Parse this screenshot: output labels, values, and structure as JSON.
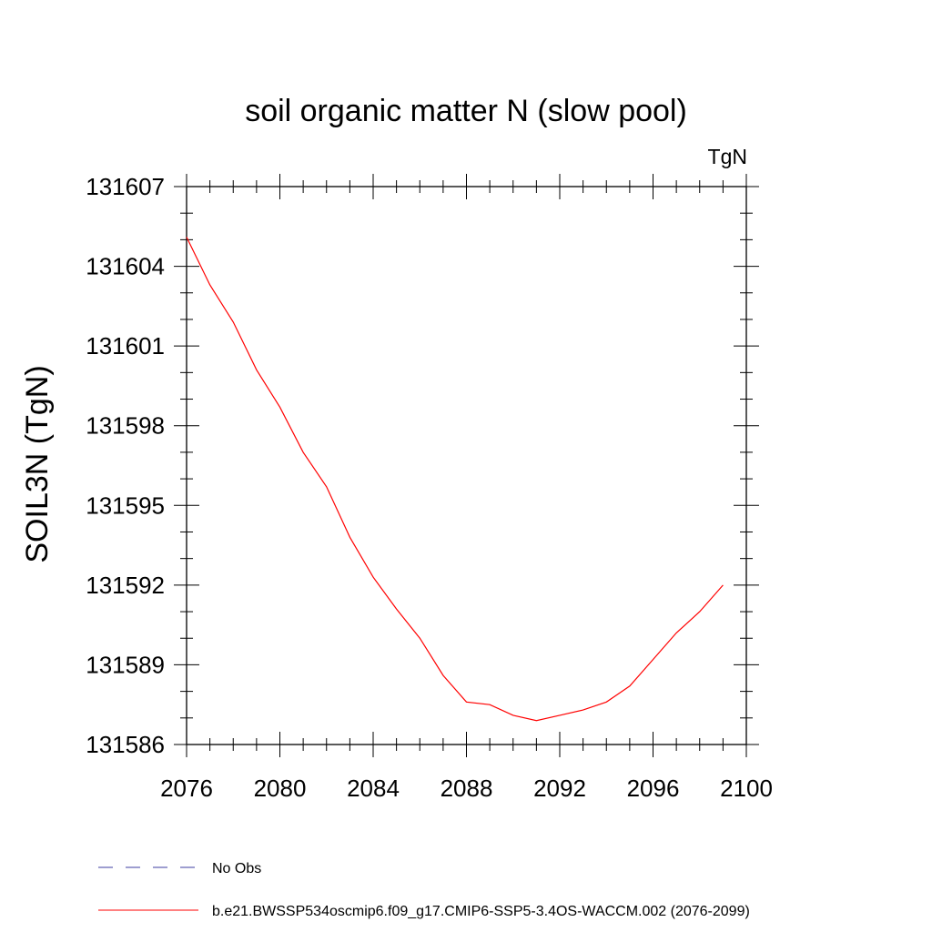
{
  "chart_data": {
    "type": "line",
    "title": "soil organic matter N (slow pool)",
    "units_label": "TgN",
    "ylabel": "SOIL3N  (TgN)",
    "xlim": [
      2076,
      2100
    ],
    "ylim": [
      131586,
      131607
    ],
    "xticks": [
      2076,
      2080,
      2084,
      2088,
      2092,
      2096,
      2100
    ],
    "yticks": [
      131586,
      131589,
      131592,
      131595,
      131598,
      131601,
      131604,
      131607
    ],
    "grid": false,
    "legend_position": "bottom-left",
    "series": [
      {
        "name": "No Obs",
        "color": "#3c3ca0",
        "dash": "dashed",
        "x": [],
        "y": []
      },
      {
        "name": "b.e21.BWSSP534oscmip6.f09_g17.CMIP6-SSP5-3.4OS-WACCM.002 (2076-2099)",
        "color": "#ff0000",
        "dash": "solid",
        "x": [
          2076,
          2077,
          2078,
          2079,
          2080,
          2081,
          2082,
          2083,
          2084,
          2085,
          2086,
          2087,
          2088,
          2089,
          2090,
          2091,
          2092,
          2093,
          2094,
          2095,
          2096,
          2097,
          2098,
          2099
        ],
        "y": [
          131605.1,
          131603.3,
          131601.9,
          131600.1,
          131598.7,
          131597.0,
          131595.7,
          131593.8,
          131592.3,
          131591.1,
          131590.0,
          131588.6,
          131587.6,
          131587.5,
          131587.1,
          131586.9,
          131587.1,
          131587.3,
          131587.6,
          131588.2,
          131589.2,
          131590.2,
          131591.0,
          131592.0
        ]
      }
    ]
  }
}
